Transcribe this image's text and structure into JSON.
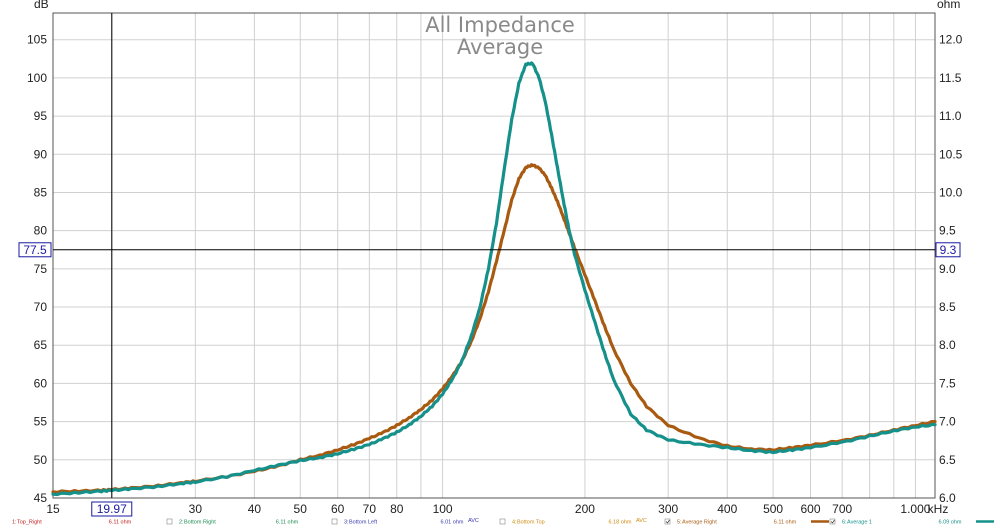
{
  "chart_data": {
    "type": "line",
    "title": [
      "All Impedance",
      "Average"
    ],
    "left_unit": "dB",
    "right_unit": "ohm",
    "x_unit_suffix": "kHz",
    "x_scale": "log",
    "xlim": [
      15,
      1100
    ],
    "ylim": [
      45,
      108.5
    ],
    "y2lim": [
      6.0,
      12.2
    ],
    "grid": true,
    "x_ticks": [
      {
        "value": 15,
        "label": "15"
      },
      {
        "value": 20,
        "label": ""
      },
      {
        "value": 30,
        "label": "30"
      },
      {
        "value": 40,
        "label": "40"
      },
      {
        "value": 50,
        "label": "50"
      },
      {
        "value": 60,
        "label": "60"
      },
      {
        "value": 70,
        "label": "70"
      },
      {
        "value": 80,
        "label": "80"
      },
      {
        "value": 90,
        "label": ""
      },
      {
        "value": 100,
        "label": "100"
      },
      {
        "value": 200,
        "label": "200"
      },
      {
        "value": 300,
        "label": "300"
      },
      {
        "value": 400,
        "label": "400"
      },
      {
        "value": 500,
        "label": "500"
      },
      {
        "value": 600,
        "label": "600"
      },
      {
        "value": 700,
        "label": "700"
      },
      {
        "value": 800,
        "label": ""
      },
      {
        "value": 900,
        "label": ""
      },
      {
        "value": 1000,
        "label": "1.000"
      }
    ],
    "y_ticks": [
      45,
      50,
      55,
      60,
      65,
      70,
      75,
      80,
      85,
      90,
      95,
      100,
      105
    ],
    "y2_ticks": [
      "6.0",
      "6.5",
      "7.0",
      "7.5",
      "8.0",
      "8.5",
      "9.0",
      "9.5",
      "10.0",
      "10.5",
      "11.0",
      "11.5",
      "12.0"
    ],
    "cursor": {
      "x": 19.97,
      "x_label": "19.97",
      "y": 77.5,
      "y_label": "77.5",
      "y2_label": "9.3"
    },
    "series": [
      {
        "name": "5: Average Right",
        "color": "#a85a10",
        "x": [
          15,
          17,
          19,
          20,
          22,
          25,
          28,
          30,
          35,
          40,
          45,
          50,
          55,
          60,
          65,
          70,
          75,
          80,
          85,
          90,
          95,
          100,
          105,
          110,
          115,
          120,
          125,
          130,
          135,
          140,
          145,
          150,
          155,
          160,
          165,
          170,
          175,
          180,
          185,
          190,
          200,
          210,
          220,
          230,
          250,
          270,
          300,
          350,
          400,
          450,
          500,
          550,
          600,
          700,
          800,
          900,
          1000,
          1100
        ],
        "y": [
          45.8,
          45.9,
          46.0,
          46.1,
          46.3,
          46.6,
          47.0,
          47.2,
          47.8,
          48.5,
          49.2,
          50.0,
          50.6,
          51.3,
          52.0,
          52.8,
          53.6,
          54.5,
          55.5,
          56.6,
          57.8,
          59.3,
          61.0,
          63.0,
          65.5,
          68.5,
          72.0,
          76.0,
          80.0,
          84.0,
          86.8,
          88.3,
          88.6,
          88.2,
          87.2,
          85.6,
          83.8,
          81.8,
          79.8,
          77.8,
          74.2,
          70.8,
          67.5,
          64.5,
          60.0,
          57.0,
          54.5,
          52.8,
          51.8,
          51.4,
          51.3,
          51.6,
          51.9,
          52.5,
          53.2,
          53.9,
          54.5,
          55.0
        ]
      },
      {
        "name": "6: Average 1",
        "color": "#15908a",
        "x": [
          15,
          17,
          19,
          20,
          22,
          25,
          28,
          30,
          35,
          40,
          45,
          50,
          55,
          60,
          65,
          70,
          75,
          80,
          85,
          90,
          95,
          100,
          105,
          110,
          115,
          120,
          125,
          130,
          135,
          140,
          145,
          150,
          155,
          160,
          165,
          170,
          175,
          180,
          185,
          190,
          200,
          210,
          220,
          230,
          250,
          270,
          300,
          350,
          400,
          450,
          500,
          550,
          600,
          700,
          800,
          900,
          1000,
          1100
        ],
        "y": [
          45.5,
          45.7,
          45.9,
          46.0,
          46.2,
          46.5,
          46.9,
          47.1,
          47.8,
          48.6,
          49.3,
          49.9,
          50.3,
          50.8,
          51.4,
          52.0,
          52.8,
          53.6,
          54.6,
          55.7,
          57.0,
          58.6,
          60.6,
          63.0,
          66.2,
          70.0,
          75.0,
          81.0,
          88.0,
          94.5,
          99.3,
          101.8,
          101.9,
          100.0,
          96.8,
          92.6,
          88.2,
          84.0,
          80.2,
          77.0,
          72.2,
          68.0,
          64.0,
          60.5,
          56.0,
          53.9,
          52.6,
          52.0,
          51.6,
          51.2,
          51.0,
          51.3,
          51.6,
          52.3,
          53.1,
          53.8,
          54.3,
          54.6
        ]
      }
    ]
  },
  "legend": [
    {
      "index": "1:",
      "name": "Top_Right",
      "value": "6.11 ohm",
      "color": "#c02020",
      "checked": false,
      "value_suffix": ""
    },
    {
      "index": "2:",
      "name": "Bottom Right",
      "value": "6.11 ohm",
      "color": "#1a8a50",
      "checked": false,
      "value_suffix": ""
    },
    {
      "index": "3:",
      "name": "Bottom Left",
      "value": "6.01 ohm",
      "color": "#3a3ab0",
      "checked": false,
      "value_suffix": "AVC"
    },
    {
      "index": "4:",
      "name": "Bottom Top",
      "value": "6.18 ohm",
      "color": "#d08a10",
      "checked": false,
      "value_suffix": "AVC"
    },
    {
      "index": "5:",
      "name": "Average Right",
      "value": "6.11 ohm",
      "color": "#a85a10",
      "checked": true,
      "value_suffix": ""
    },
    {
      "index": "6:",
      "name": "Average 1",
      "value": "6.09 ohm",
      "color": "#15908a",
      "checked": true,
      "value_suffix": ""
    }
  ]
}
